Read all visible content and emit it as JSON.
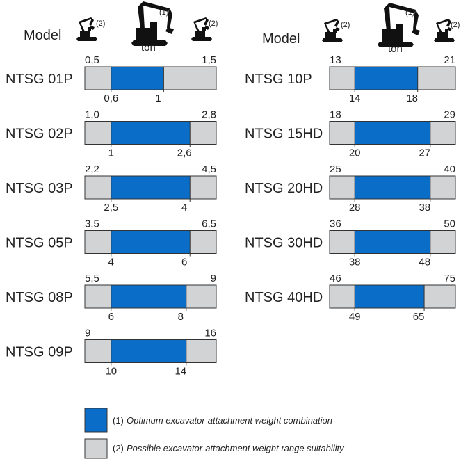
{
  "header": {
    "model_label": "Model",
    "unit_label": "ton",
    "optimum_marker": "(1)",
    "possible_marker": "(2)"
  },
  "colors": {
    "optimum": "#0a6ec8",
    "possible": "#d2d3d5",
    "outline": "#333333"
  },
  "legend": {
    "optimum_marker": "(1)",
    "optimum_text": "Optimum excavator-attachment weight combination",
    "possible_marker": "(2)",
    "possible_text": "Possible excavator-attachment weight range suitability"
  },
  "chart_data": [
    {
      "type": "bar",
      "layout": "range",
      "column": "left",
      "rows": [
        {
          "model": "NTSG 01P",
          "possible_min": "0,5",
          "possible_max": "1,5",
          "optimum_min": "0,6",
          "optimum_max": "1"
        },
        {
          "model": "NTSG 02P",
          "possible_min": "1,0",
          "possible_max": "2,8",
          "optimum_min": "1",
          "optimum_max": "2,6"
        },
        {
          "model": "NTSG 03P",
          "possible_min": "2,2",
          "possible_max": "4,5",
          "optimum_min": "2,5",
          "optimum_max": "4"
        },
        {
          "model": "NTSG 05P",
          "possible_min": "3,5",
          "possible_max": "6,5",
          "optimum_min": "4",
          "optimum_max": "6"
        },
        {
          "model": "NTSG 08P",
          "possible_min": "5,5",
          "possible_max": "9",
          "optimum_min": "6",
          "optimum_max": "8"
        },
        {
          "model": "NTSG 09P",
          "possible_min": "9",
          "possible_max": "16",
          "optimum_min": "10",
          "optimum_max": "14"
        }
      ]
    },
    {
      "type": "bar",
      "layout": "range",
      "column": "right",
      "rows": [
        {
          "model": "NTSG 10P",
          "possible_min": "13",
          "possible_max": "21",
          "optimum_min": "14",
          "optimum_max": "18"
        },
        {
          "model": "NTSG 15HD",
          "possible_min": "18",
          "possible_max": "29",
          "optimum_min": "20",
          "optimum_max": "27"
        },
        {
          "model": "NTSG 20HD",
          "possible_min": "25",
          "possible_max": "40",
          "optimum_min": "28",
          "optimum_max": "38"
        },
        {
          "model": "NTSG 30HD",
          "possible_min": "36",
          "possible_max": "50",
          "optimum_min": "38",
          "optimum_max": "48"
        },
        {
          "model": "NTSG 40HD",
          "possible_min": "46",
          "possible_max": "75",
          "optimum_min": "49",
          "optimum_max": "65"
        }
      ]
    }
  ]
}
